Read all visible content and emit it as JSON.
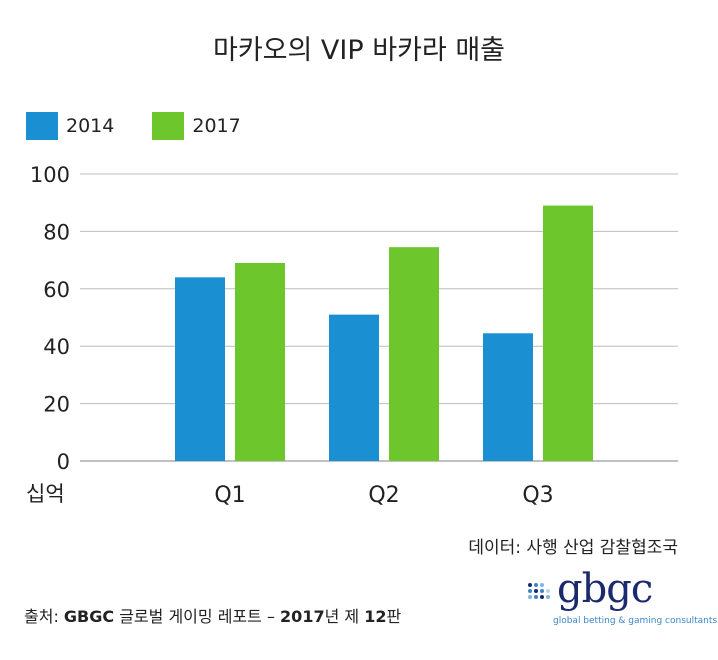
{
  "header": {
    "title": "마카오의 VIP 바카라 매출"
  },
  "legend": {
    "items": [
      {
        "label": "2014",
        "color": "#1a8fd1"
      },
      {
        "label": "2017",
        "color": "#6cc62c"
      }
    ]
  },
  "chart_data": {
    "type": "bar",
    "title": "마카오의 VIP 바카라 매출",
    "categories": [
      "Q1",
      "Q2",
      "Q3"
    ],
    "series": [
      {
        "name": "2014",
        "values": [
          64,
          51,
          44.5
        ],
        "color": "#1a8fd1"
      },
      {
        "name": "2017",
        "values": [
          69,
          74.5,
          89
        ],
        "color": "#6cc62c"
      }
    ],
    "ylim": [
      0,
      100
    ],
    "yticks": [
      0,
      20,
      40,
      60,
      80,
      100
    ],
    "y_unit_label": "십억",
    "grid": true,
    "legend_position": "top-left"
  },
  "footer": {
    "source_note": "데이터: 사행 산업 감찰협조국",
    "citation_prefix": "출처: ",
    "citation_bold1": "GBGC",
    "citation_mid": " 글로벌 게이밍 레포트 – ",
    "citation_bold2": "2017",
    "citation_mid2": "년 제 ",
    "citation_bold3": "12",
    "citation_suffix": "판"
  },
  "logo": {
    "word": "gbgc",
    "tagline": "global betting & gaming consultants",
    "color": "#1a2a6c",
    "accent": "#3a86c8"
  }
}
